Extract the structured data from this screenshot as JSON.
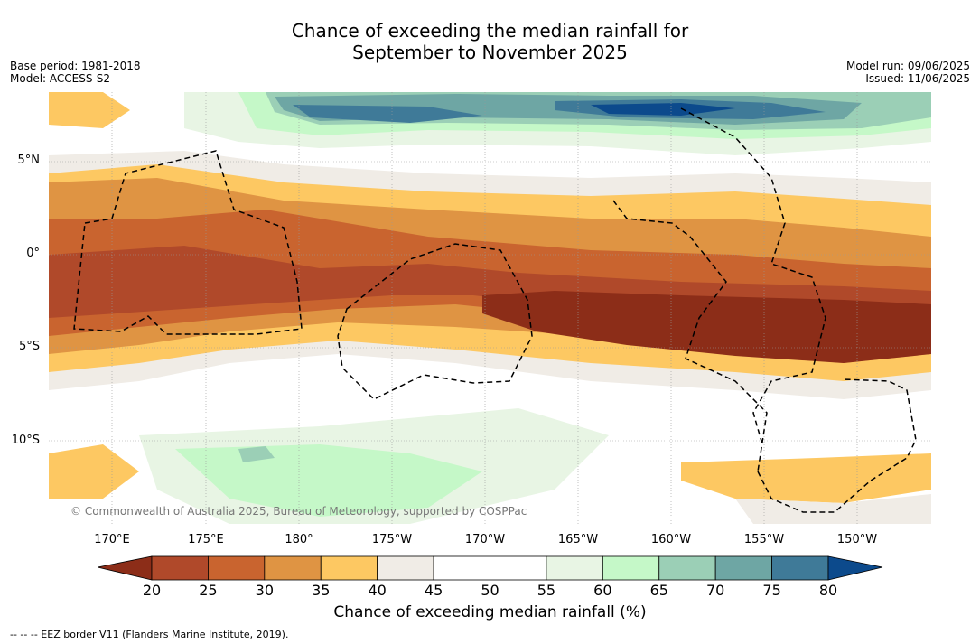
{
  "title": {
    "line1": "Chance of exceeding the median rainfall for",
    "line2": "September to November 2025"
  },
  "meta_left": {
    "base_period": "Base period: 1981-2018",
    "model": "Model: ACCESS-S2"
  },
  "meta_right": {
    "model_run": "Model run: 09/06/2025",
    "issued": "Issued: 11/06/2025"
  },
  "map": {
    "lat_ticks": [
      "5°N",
      "0°",
      "5°S",
      "10°S"
    ],
    "lon_ticks": [
      "170°E",
      "175°E",
      "180°",
      "175°W",
      "170°W",
      "165°W",
      "160°W",
      "155°W",
      "150°W"
    ],
    "credit": "© Commonwealth of Australia 2025, Bureau of Meteorology, supported by COSPPac"
  },
  "colorbar": {
    "labels": [
      "20",
      "25",
      "30",
      "35",
      "40",
      "45",
      "50",
      "55",
      "60",
      "65",
      "70",
      "75",
      "80"
    ],
    "colors": {
      "lt20": "#8c2d18",
      "20": "#b0492a",
      "25": "#c9642f",
      "30": "#df9443",
      "35": "#fdc862",
      "40": "#f0ece6",
      "45": "#ffffff",
      "50": "#ffffff",
      "55": "#e8f5e4",
      "60": "#c5f8c8",
      "65": "#9bcfb6",
      "70": "#6ea6a4",
      "75": "#3f7a98",
      "gt80": "#0c4a8c"
    },
    "title": "Chance of exceeding median rainfall (%)"
  },
  "legend_text": "-- -- -- EEZ border V11 (Flanders Marine Institute, 2019)."
}
